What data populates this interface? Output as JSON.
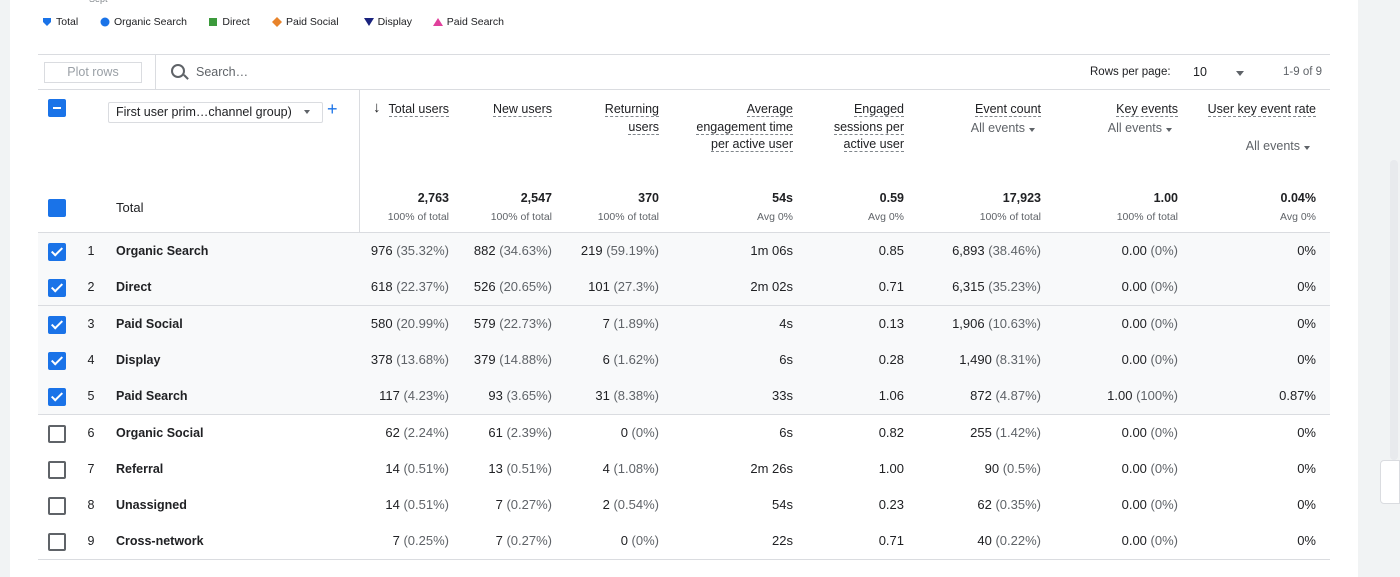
{
  "top_label": "Sept",
  "legend": [
    {
      "label": "Total",
      "color": "#1a73e8",
      "shape": "drop"
    },
    {
      "label": "Organic Search",
      "color": "#1a73e8",
      "shape": "circle"
    },
    {
      "label": "Direct",
      "color": "#3c9a3c",
      "shape": "square"
    },
    {
      "label": "Paid Social",
      "color": "#e8832a",
      "shape": "diamond"
    },
    {
      "label": "Display",
      "color": "#1a237e",
      "shape": "triangle-down"
    },
    {
      "label": "Paid Search",
      "color": "#e0409c",
      "shape": "triangle-up"
    }
  ],
  "toolbar": {
    "plot_rows": "Plot rows",
    "search": "Search…",
    "rows_per_page_label": "Rows per page:",
    "rows_per_page": "10",
    "range": "1-9 of 9"
  },
  "table": {
    "dimension": "First user prim…channel group)",
    "columns": [
      {
        "name": "Total users",
        "sorted": true
      },
      {
        "name": "New users"
      },
      {
        "name": "Returning users"
      },
      {
        "name": "Average engagement time per active user"
      },
      {
        "name": "Engaged sessions per active user"
      },
      {
        "name": "Event count",
        "filter": "All events"
      },
      {
        "name": "Key events",
        "filter": "All events"
      },
      {
        "name": "User key event rate",
        "filter": "All events"
      }
    ],
    "total": {
      "label": "Total",
      "checked": true,
      "cells": [
        [
          "2,763",
          "100% of total"
        ],
        [
          "2,547",
          "100% of total"
        ],
        [
          "370",
          "100% of total"
        ],
        [
          "54s",
          "Avg 0%"
        ],
        [
          "0.59",
          "Avg 0%"
        ],
        [
          "17,923",
          "100% of total"
        ],
        [
          "1.00",
          "100% of total"
        ],
        [
          "0.04%",
          "Avg 0%"
        ]
      ]
    },
    "rows": [
      {
        "index": "1",
        "name": "Organic Search",
        "checked": true,
        "cells": [
          [
            "976",
            "(35.32%)"
          ],
          [
            "882",
            "(34.63%)"
          ],
          [
            "219",
            "(59.19%)"
          ],
          "1m 06s",
          "0.85",
          [
            "6,893",
            "(38.46%)"
          ],
          [
            "0.00",
            "(0%)"
          ],
          "0%"
        ]
      },
      {
        "index": "2",
        "name": "Direct",
        "checked": true,
        "cells": [
          [
            "618",
            "(22.37%)"
          ],
          [
            "526",
            "(20.65%)"
          ],
          [
            "101",
            "(27.3%)"
          ],
          "2m 02s",
          "0.71",
          [
            "6,315",
            "(35.23%)"
          ],
          [
            "0.00",
            "(0%)"
          ],
          "0%"
        ]
      },
      {
        "index": "3",
        "name": "Paid Social",
        "checked": true,
        "cells": [
          [
            "580",
            "(20.99%)"
          ],
          [
            "579",
            "(22.73%)"
          ],
          [
            "7",
            "(1.89%)"
          ],
          "4s",
          "0.13",
          [
            "1,906",
            "(10.63%)"
          ],
          [
            "0.00",
            "(0%)"
          ],
          "0%"
        ]
      },
      {
        "index": "4",
        "name": "Display",
        "checked": true,
        "cells": [
          [
            "378",
            "(13.68%)"
          ],
          [
            "379",
            "(14.88%)"
          ],
          [
            "6",
            "(1.62%)"
          ],
          "6s",
          "0.28",
          [
            "1,490",
            "(8.31%)"
          ],
          [
            "0.00",
            "(0%)"
          ],
          "0%"
        ]
      },
      {
        "index": "5",
        "name": "Paid Search",
        "checked": true,
        "cells": [
          [
            "117",
            "(4.23%)"
          ],
          [
            "93",
            "(3.65%)"
          ],
          [
            "31",
            "(8.38%)"
          ],
          "33s",
          "1.06",
          [
            "872",
            "(4.87%)"
          ],
          [
            "1.00",
            "(100%)"
          ],
          "0.87%"
        ]
      },
      {
        "index": "6",
        "name": "Organic Social",
        "checked": false,
        "cells": [
          [
            "62",
            "(2.24%)"
          ],
          [
            "61",
            "(2.39%)"
          ],
          [
            "0",
            "(0%)"
          ],
          "6s",
          "0.82",
          [
            "255",
            "(1.42%)"
          ],
          [
            "0.00",
            "(0%)"
          ],
          "0%"
        ]
      },
      {
        "index": "7",
        "name": "Referral",
        "checked": false,
        "cells": [
          [
            "14",
            "(0.51%)"
          ],
          [
            "13",
            "(0.51%)"
          ],
          [
            "4",
            "(1.08%)"
          ],
          "2m 26s",
          "1.00",
          [
            "90",
            "(0.5%)"
          ],
          [
            "0.00",
            "(0%)"
          ],
          "0%"
        ]
      },
      {
        "index": "8",
        "name": "Unassigned",
        "checked": false,
        "cells": [
          [
            "14",
            "(0.51%)"
          ],
          [
            "7",
            "(0.27%)"
          ],
          [
            "2",
            "(0.54%)"
          ],
          "54s",
          "0.23",
          [
            "62",
            "(0.35%)"
          ],
          [
            "0.00",
            "(0%)"
          ],
          "0%"
        ]
      },
      {
        "index": "9",
        "name": "Cross-network",
        "checked": false,
        "cells": [
          [
            "7",
            "(0.25%)"
          ],
          [
            "7",
            "(0.27%)"
          ],
          [
            "0",
            "(0%)"
          ],
          "22s",
          "0.71",
          [
            "40",
            "(0.22%)"
          ],
          [
            "0.00",
            "(0%)"
          ],
          "0%"
        ]
      }
    ]
  }
}
